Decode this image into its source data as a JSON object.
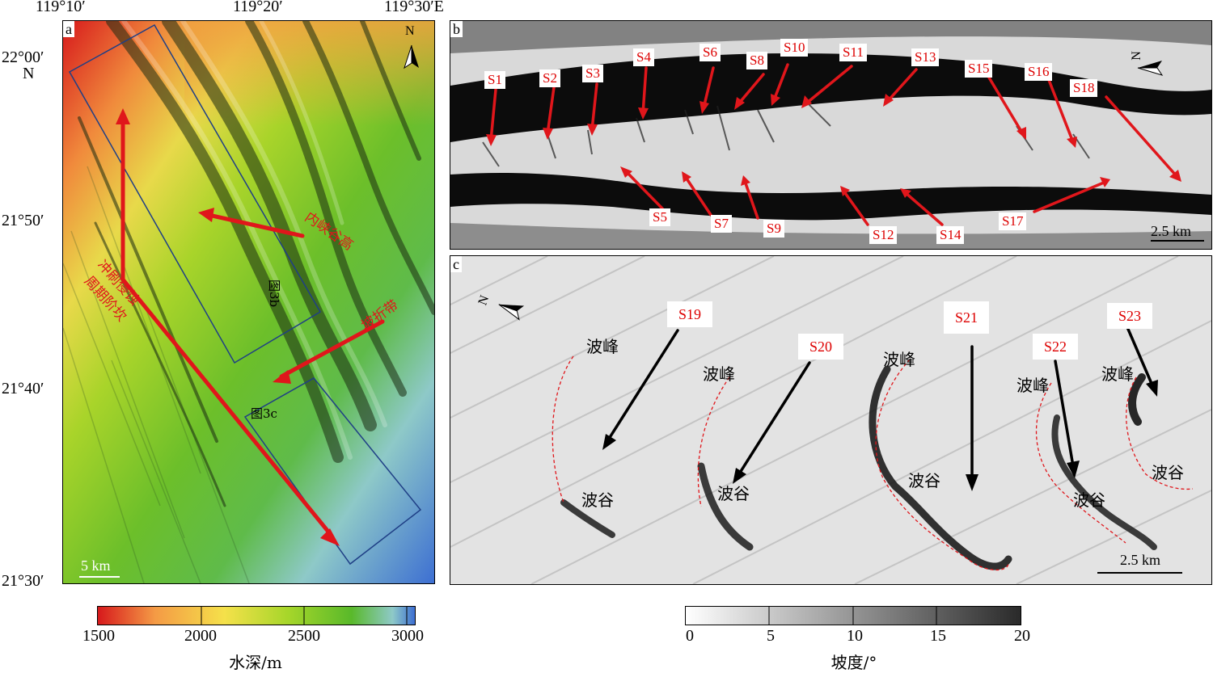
{
  "panel_a": {
    "label": "a",
    "top_lon_labels": [
      "119°10′",
      "119°20′",
      "119°30′E"
    ],
    "lat_labels": [
      "22°00′",
      "N",
      "21°50′",
      "21°40′",
      "21°30′"
    ],
    "box_labels": [
      "图3b",
      "图3c"
    ],
    "annotations": [
      "内峡谷高",
      "坡折带",
      "冲刷侵蚀",
      "周期阶坎"
    ],
    "north": "N",
    "scale": "5 km"
  },
  "panel_b": {
    "label": "b",
    "north": "N",
    "scale": "2.5 km",
    "sites": [
      "S1",
      "S2",
      "S3",
      "S4",
      "S5",
      "S6",
      "S7",
      "S8",
      "S9",
      "S10",
      "S11",
      "S12",
      "S13",
      "S14",
      "S15",
      "S16",
      "S17",
      "S18"
    ]
  },
  "panel_c": {
    "label": "c",
    "north": "N",
    "scale": "2.5 km",
    "sites": [
      "S19",
      "S20",
      "S21",
      "S22",
      "S23"
    ],
    "crest": "波峰",
    "trough": "波谷"
  },
  "colorbar_depth": {
    "ticks": [
      "1500",
      "2000",
      "2500",
      "3000"
    ],
    "title": "水深/m",
    "colors": [
      "#d7191c",
      "#f49a45",
      "#f5e14a",
      "#a6d62a",
      "#59b92a",
      "#8ec9c8",
      "#3d6fd2"
    ]
  },
  "colorbar_slope": {
    "ticks": [
      "0",
      "5",
      "10",
      "15",
      "20"
    ],
    "title": "坡度/°",
    "colors": [
      "#ffffff",
      "#2a2a2a"
    ]
  },
  "accent_red": "#e0161b",
  "box_blue": "#1f3f86"
}
